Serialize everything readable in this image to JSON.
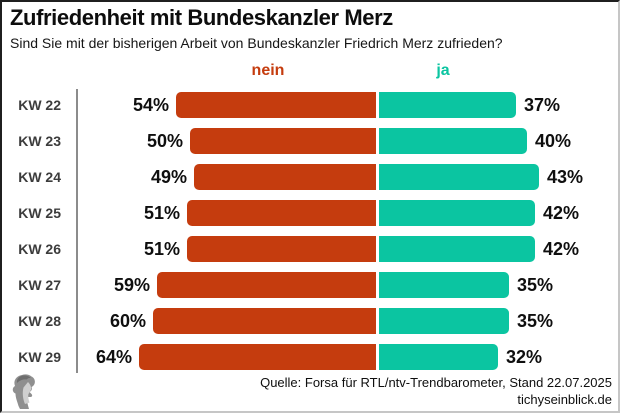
{
  "header": {
    "title": "Zufriedenheit mit Bundeskanzler Merz",
    "subtitle": "Sind Sie mit der bisherigen Arbeit von Bundeskanzler Friedrich Merz zufrieden?"
  },
  "legend": {
    "nein_label": "nein",
    "ja_label": "ja"
  },
  "colors": {
    "nein": "#c53c0e",
    "ja": "#0bc5a1",
    "axis": "#8c8c8c",
    "text": "#111111",
    "week_label": "#3c3c3c"
  },
  "chart_data": {
    "type": "bar",
    "orientation": "horizontal-diverging",
    "categories": [
      "KW 22",
      "KW 23",
      "KW 24",
      "KW 25",
      "KW 26",
      "KW 27",
      "KW 28",
      "KW 29"
    ],
    "series": [
      {
        "name": "nein",
        "values": [
          54,
          50,
          49,
          51,
          51,
          59,
          60,
          64
        ]
      },
      {
        "name": "ja",
        "values": [
          37,
          40,
          43,
          42,
          42,
          35,
          35,
          32
        ]
      }
    ],
    "unit": "%",
    "title": "Zufriedenheit mit Bundeskanzler Merz",
    "xlabel": "",
    "ylabel": "",
    "value_labels": true,
    "grid": false,
    "legend_position": "top"
  },
  "footer": {
    "source_line": "Quelle: Forsa für RTL/ntv-Trendbarometer, Stand 22.07.2025",
    "site": "tichyseinblick.de"
  },
  "logo": {
    "icon": "classical-head-cameo-logo"
  }
}
